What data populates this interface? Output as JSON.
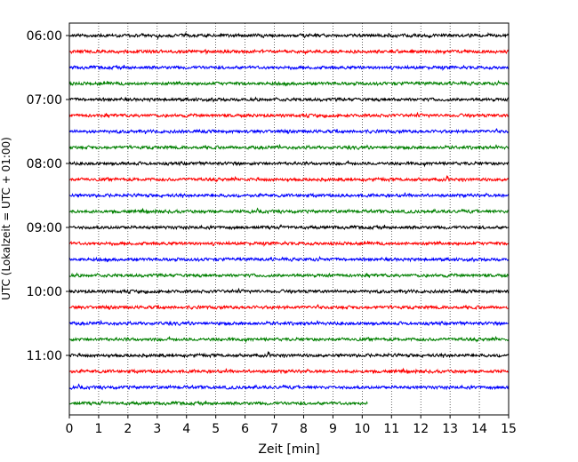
{
  "chart_data": {
    "type": "line",
    "xlabel": "Zeit  [min]",
    "ylabel": "UTC (Lokalzeit = UTC + 01:00)",
    "xlim": [
      0,
      15
    ],
    "x_ticks": [
      "0",
      "1",
      "2",
      "3",
      "4",
      "5",
      "6",
      "7",
      "8",
      "9",
      "10",
      "11",
      "12",
      "13",
      "14",
      "15"
    ],
    "y_ticks": [
      "06:00",
      "07:00",
      "08:00",
      "09:00",
      "10:00",
      "11:00"
    ],
    "grid": "vertical dotted",
    "trace_colors": [
      "#000000",
      "#ff0000",
      "#0000ff",
      "#008000"
    ],
    "traces": [
      {
        "start": "06:00",
        "end_min": 15,
        "color_index": 0
      },
      {
        "start": "06:15",
        "end_min": 15,
        "color_index": 1
      },
      {
        "start": "06:30",
        "end_min": 15,
        "color_index": 2
      },
      {
        "start": "06:45",
        "end_min": 15,
        "color_index": 3
      },
      {
        "start": "07:00",
        "end_min": 15,
        "color_index": 0
      },
      {
        "start": "07:15",
        "end_min": 15,
        "color_index": 1
      },
      {
        "start": "07:30",
        "end_min": 15,
        "color_index": 2
      },
      {
        "start": "07:45",
        "end_min": 15,
        "color_index": 3
      },
      {
        "start": "08:00",
        "end_min": 15,
        "color_index": 0
      },
      {
        "start": "08:15",
        "end_min": 15,
        "color_index": 1
      },
      {
        "start": "08:30",
        "end_min": 15,
        "color_index": 2
      },
      {
        "start": "08:45",
        "end_min": 15,
        "color_index": 3
      },
      {
        "start": "09:00",
        "end_min": 15,
        "color_index": 0
      },
      {
        "start": "09:15",
        "end_min": 15,
        "color_index": 1
      },
      {
        "start": "09:30",
        "end_min": 15,
        "color_index": 2
      },
      {
        "start": "09:45",
        "end_min": 15,
        "color_index": 3
      },
      {
        "start": "10:00",
        "end_min": 15,
        "color_index": 0
      },
      {
        "start": "10:15",
        "end_min": 15,
        "color_index": 1
      },
      {
        "start": "10:30",
        "end_min": 15,
        "color_index": 2
      },
      {
        "start": "10:45",
        "end_min": 15,
        "color_index": 3
      },
      {
        "start": "11:00",
        "end_min": 15,
        "color_index": 0
      },
      {
        "start": "11:15",
        "end_min": 15,
        "color_index": 1
      },
      {
        "start": "11:30",
        "end_min": 15,
        "color_index": 2
      },
      {
        "start": "11:45",
        "end_min": 10.2,
        "color_index": 3
      }
    ]
  }
}
